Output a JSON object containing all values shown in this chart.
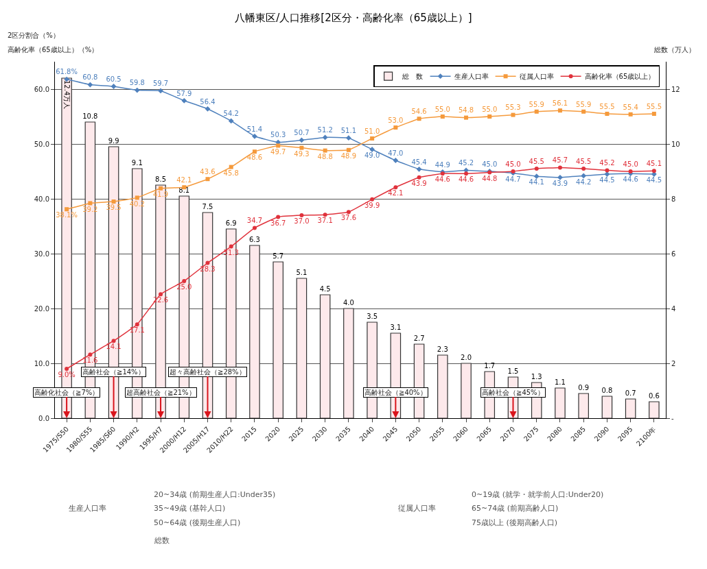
{
  "chart_data": {
    "type": "bar",
    "title": "八幡東区/人口推移[2区分・高齢化率（65歳以上）]",
    "y2label": "総数（万人）",
    "categories": [
      "1975/S50",
      "1980/S55",
      "1985/S60",
      "1990/H2",
      "1995/H7",
      "2000/H12",
      "2005/H17",
      "2010/H22",
      "2015",
      "2020",
      "2025",
      "2030",
      "2035",
      "2040",
      "2045",
      "2050",
      "2055",
      "2060",
      "2065",
      "2070",
      "2075",
      "2080",
      "2085",
      "2090",
      "2095",
      "2100年"
    ],
    "series": [
      {
        "name": "総　数",
        "axis": "y2",
        "color": "#fde9eb",
        "values": [
          12.4,
          10.8,
          9.9,
          9.1,
          8.5,
          8.1,
          7.5,
          6.9,
          6.3,
          5.7,
          5.1,
          4.5,
          4.0,
          3.5,
          3.1,
          2.7,
          2.3,
          2.0,
          1.7,
          1.5,
          1.3,
          1.1,
          0.9,
          0.8,
          0.7,
          0.6
        ],
        "value_labels": [
          "12.4万人",
          "10.8",
          "9.9",
          "9.1",
          "8.5",
          "8.1",
          "7.5",
          "6.9",
          "6.3",
          "5.7",
          "5.1",
          "4.5",
          "4.0",
          "3.5",
          "3.1",
          "2.7",
          "2.3",
          "2.0",
          "1.7",
          "1.5",
          "1.3",
          "1.1",
          "0.9",
          "0.8",
          "0.7",
          "0.6"
        ]
      },
      {
        "name": "生産人口率",
        "type": "line",
        "marker": "diamond",
        "color": "#4f81bd",
        "values": [
          61.8,
          60.8,
          60.5,
          59.8,
          59.7,
          57.9,
          56.4,
          54.2,
          51.4,
          50.3,
          50.7,
          51.2,
          51.1,
          49.0,
          47.0,
          45.4,
          44.9,
          45.2,
          45.0,
          44.7,
          44.1,
          43.9,
          44.2,
          44.5,
          44.6,
          44.5
        ],
        "value_labels": [
          "61.8%",
          "60.8",
          "60.5",
          "59.8",
          "59.7",
          "57.9",
          "56.4",
          "54.2",
          "51.4",
          "50.3",
          "50.7",
          "51.2",
          "51.1",
          "49.0",
          "47.0",
          "45.4",
          "44.9",
          "45.2",
          "45.0",
          "44.7",
          "44.1",
          "43.9",
          "44.2",
          "44.5",
          "44.6",
          "44.5"
        ]
      },
      {
        "name": "従属人口率",
        "type": "line",
        "marker": "square",
        "color": "#f59a3c",
        "values": [
          38.1,
          39.2,
          39.5,
          40.2,
          41.9,
          42.1,
          43.6,
          45.8,
          48.6,
          49.7,
          49.3,
          48.8,
          48.9,
          51.0,
          53.0,
          54.6,
          55.0,
          54.8,
          55.0,
          55.3,
          55.9,
          56.1,
          55.9,
          55.5,
          55.4,
          55.5
        ],
        "value_labels": [
          "38.1%",
          "39.2",
          "39.5",
          "40.2",
          "41.9",
          "42.1",
          "43.6",
          "45.8",
          "48.6",
          "49.7",
          "49.3",
          "48.8",
          "48.9",
          "51.0",
          "53.0",
          "54.6",
          "55.0",
          "54.8",
          "55.0",
          "55.3",
          "55.9",
          "56.1",
          "55.9",
          "55.5",
          "55.4",
          "55.5"
        ]
      },
      {
        "name": "高齢化率（65歳以上）",
        "type": "line",
        "marker": "circle",
        "color": "#e0323c",
        "values": [
          9.0,
          11.6,
          14.1,
          17.1,
          22.6,
          25.0,
          28.3,
          31.3,
          34.7,
          36.7,
          37.0,
          37.1,
          37.6,
          39.9,
          42.1,
          43.9,
          44.6,
          44.6,
          44.8,
          45.0,
          45.5,
          45.7,
          45.5,
          45.2,
          45.0,
          45.1
        ],
        "value_labels": [
          "9.0%",
          "11.6",
          "14.1",
          "17.1",
          "22.6",
          "25.0",
          "28.3",
          "31.3",
          "34.7",
          "36.7",
          "37.0",
          "37.1",
          "37.6",
          "39.9",
          "42.1",
          "43.9",
          "44.6",
          "44.6",
          "44.8",
          "45.0",
          "45.5",
          "45.7",
          "45.5",
          "45.2",
          "45.0",
          "45.1"
        ]
      }
    ],
    "ylim": [
      0,
      65
    ],
    "yticks": [
      {
        "value": 0,
        "label": "0.0"
      },
      {
        "value": 10,
        "label": "10.0"
      },
      {
        "value": 20,
        "label": "20.0"
      },
      {
        "value": 30,
        "label": "30.0"
      },
      {
        "value": 40,
        "label": "40.0"
      },
      {
        "value": 50,
        "label": "50.0"
      },
      {
        "value": 60,
        "label": "60.0"
      }
    ],
    "y2lim": [
      0,
      13
    ],
    "y2ticks": [
      {
        "value": 0,
        "label": "-"
      },
      2,
      4,
      6,
      8,
      10,
      12
    ],
    "grid": "y",
    "legend": "top right",
    "annotations": [
      "2区分割合（%）",
      "高齢化率（65歳以上）（%）",
      {
        "text": "高齢化社会（≧7%）",
        "x": "1975/S50",
        "y": 0
      },
      {
        "text": "高齢社会（≧14%）",
        "x": "1985/S60",
        "y": 0
      },
      {
        "text": "超高齢社会（≧21%）",
        "x": "1995/H7",
        "y": 0
      },
      {
        "text": "超々高齢社会（≧28%）",
        "x": "2005/H17",
        "y": 0
      },
      {
        "text": "高齢社会（≧40%）",
        "x": "2045",
        "y": 0
      },
      {
        "text": "高齢社会（≧45%）",
        "x": "2070",
        "y": 0
      },
      "生産人口率",
      "20~34歳 (前期生産人口:Under35)",
      "35~49歳 (基幹人口)",
      "50~64歳 (後期生産人口)",
      "従属人口率",
      "0~19歳 (就学・就学前人口:Under20)",
      "65~74歳 (前期高齢人口)",
      "75歳以上 (後期高齢人口)",
      "総数"
    ]
  }
}
